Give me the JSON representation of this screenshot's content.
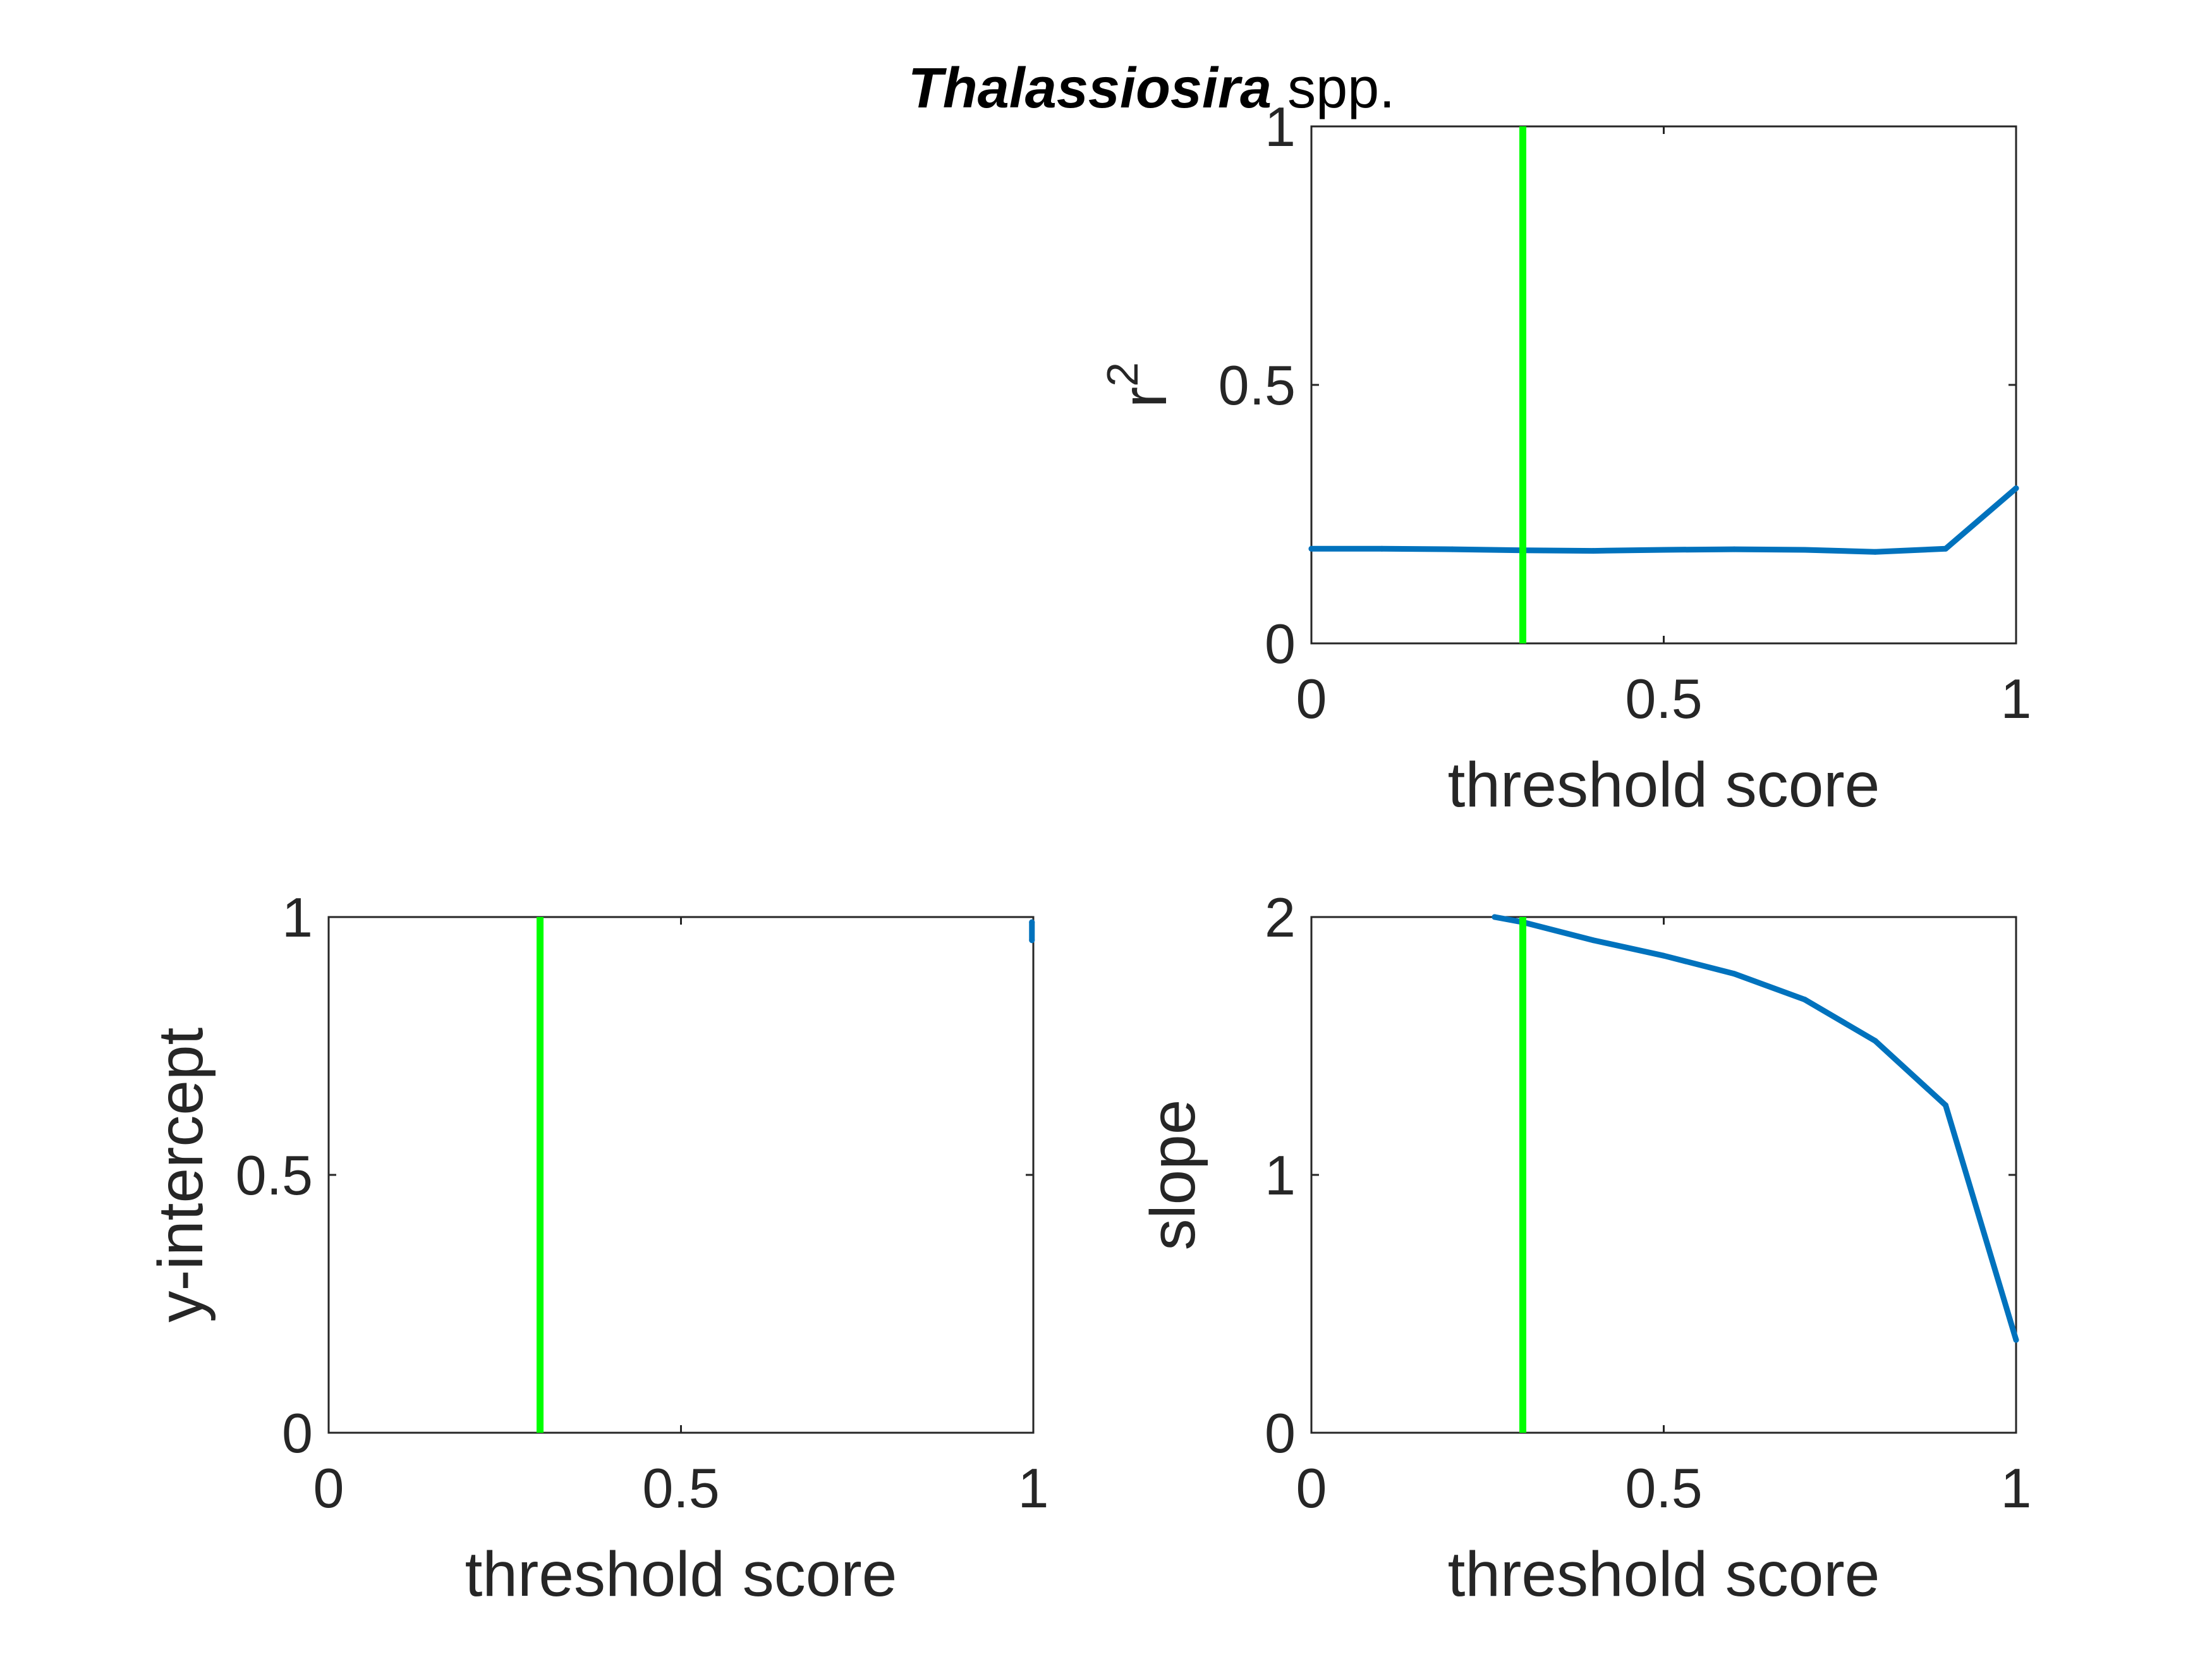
{
  "figure": {
    "title_italic": "Thalassiosira",
    "title_rest": " spp."
  },
  "colors": {
    "line": "#0072BD",
    "threshold": "#00FF00",
    "axis": "#262626"
  },
  "chart_data": [
    {
      "id": "r2",
      "type": "line",
      "title": "",
      "xlabel": "threshold score",
      "ylabel": "r",
      "ylabel_superscript": "2",
      "xlim": [
        0,
        1
      ],
      "ylim": [
        0,
        1
      ],
      "xticks": [
        "0",
        "0.5",
        "1"
      ],
      "yticks": [
        "0",
        "0.5",
        "1"
      ],
      "threshold_x": 0.3,
      "series": [
        {
          "x": [
            0,
            0.1,
            0.2,
            0.3,
            0.4,
            0.5,
            0.6,
            0.7,
            0.8,
            0.9,
            1.0
          ],
          "values": [
            0.183,
            0.183,
            0.182,
            0.18,
            0.179,
            0.181,
            0.182,
            0.181,
            0.177,
            0.183,
            0.3
          ]
        }
      ]
    },
    {
      "id": "intercept",
      "type": "line",
      "title": "",
      "xlabel": "threshold score",
      "ylabel": "y-intercept",
      "xlim": [
        0,
        1
      ],
      "ylim": [
        0,
        1
      ],
      "xticks": [
        "0",
        "0.5",
        "1"
      ],
      "yticks": [
        "0",
        "0.5",
        "1"
      ],
      "threshold_x": 0.3,
      "series": [
        {
          "x": [
            0.998,
            0.998
          ],
          "values": [
            0.99,
            0.955
          ]
        }
      ]
    },
    {
      "id": "slope",
      "type": "line",
      "title": "",
      "xlabel": "threshold score",
      "ylabel": "slope",
      "xlim": [
        0,
        1
      ],
      "ylim": [
        0,
        2
      ],
      "xticks": [
        "0",
        "0.5",
        "1"
      ],
      "yticks": [
        "0",
        "1",
        "2"
      ],
      "threshold_x": 0.3,
      "series": [
        {
          "x": [
            0.26,
            0.3,
            0.4,
            0.5,
            0.6,
            0.7,
            0.8,
            0.9,
            1.0
          ],
          "values": [
            2.0,
            1.98,
            1.91,
            1.85,
            1.78,
            1.68,
            1.52,
            1.27,
            0.36
          ]
        }
      ]
    }
  ]
}
